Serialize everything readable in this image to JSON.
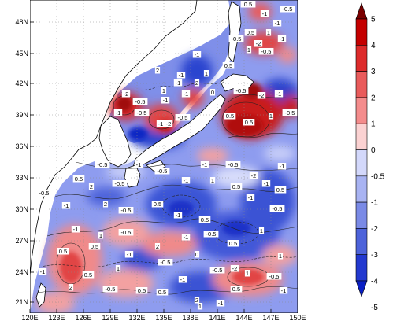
{
  "map": {
    "x_ticks": [
      "120E",
      "123E",
      "126E",
      "129E",
      "132E",
      "135E",
      "138E",
      "141E",
      "144E",
      "147E",
      "150E"
    ],
    "y_ticks": [
      "48N",
      "45N",
      "42N",
      "39N",
      "36N",
      "33N",
      "30N",
      "27N",
      "24N",
      "21N"
    ],
    "lon_range": [
      120,
      150
    ],
    "lat_range": [
      20,
      50
    ],
    "colorbar": {
      "labels": [
        "5",
        "4",
        "3",
        "2",
        "1",
        "0",
        "-0.5",
        "-1",
        "-2",
        "-3",
        "-4",
        "-5"
      ],
      "colors": [
        "#7a0000",
        "#c40000",
        "#dd2b2b",
        "#e95b5b",
        "#f48c8c",
        "#fbd2d2",
        "#d3d8fb",
        "#a8b3f2",
        "#7a8ae6",
        "#4d63da",
        "#2339cf",
        "#0a1fc4"
      ],
      "levels": [
        5,
        4,
        3,
        2,
        1,
        0,
        -0.5,
        -1,
        -2,
        -3,
        -4,
        -5
      ]
    },
    "contour_labels": [
      "-0.5",
      "-1",
      "-1",
      "-0.5",
      "0.5",
      "1",
      "-1",
      "-2",
      "-0.5",
      "-1",
      "1",
      "-0.5",
      "2",
      "-1",
      "1",
      "0.5",
      "-1",
      "2",
      "-2",
      "1",
      "-1",
      "-0.5",
      "-1",
      "0",
      "-0.5",
      "-2",
      "-1",
      "-0.5",
      "-1",
      "-0.5",
      "-1",
      "-2",
      "-0.5",
      "0.5",
      "0.5",
      "1",
      "-0.5",
      "-1",
      "-0.5",
      "-1",
      "-0.5",
      "-2",
      "-1",
      "0.5",
      "-0.5",
      "2",
      "-1",
      "1",
      "0.5",
      "-1",
      "0.5",
      "-0.5",
      "-1",
      "2",
      "-0.5",
      "0.5",
      "-1",
      "0.5",
      "-1",
      "-0.5",
      "-0.5",
      "-1",
      "1",
      "0.5",
      "2",
      "-1",
      "-0.5",
      "0.5",
      "1",
      "0.5",
      "-1",
      "-0.5",
      "0",
      "1",
      "-1",
      "-0.5",
      "-2",
      "1",
      "1",
      "-1",
      "2",
      "0.5",
      "-0.5",
      "0.5",
      "0.5",
      "2",
      "-1",
      "-0.5",
      "-1",
      "0.5",
      "1",
      "0.5"
    ]
  }
}
